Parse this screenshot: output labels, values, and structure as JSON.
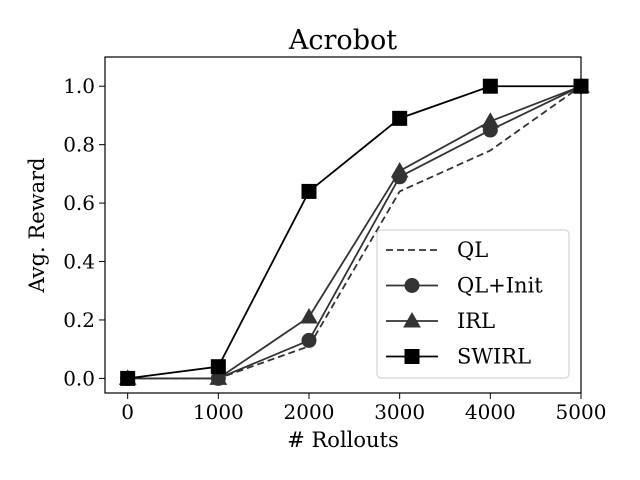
{
  "chart_data": {
    "type": "line",
    "title": "Acrobot",
    "xlabel": "# Rollouts",
    "ylabel": "Avg. Reward",
    "x": [
      0,
      1000,
      2000,
      3000,
      4000,
      5000
    ],
    "xticks": [
      "0",
      "1000",
      "2000",
      "3000",
      "4000",
      "5000"
    ],
    "yticks": [
      "0.0",
      "0.2",
      "0.4",
      "0.6",
      "0.8",
      "1.0"
    ],
    "xlim": [
      -250,
      5000
    ],
    "ylim": [
      -0.05,
      1.1
    ],
    "grid": false,
    "legend_position": "lower-right",
    "series": [
      {
        "name": "QL",
        "values": [
          0.0,
          0.0,
          0.11,
          0.64,
          0.78,
          1.0
        ],
        "marker": "none",
        "dash": "dashed",
        "color": "#333333"
      },
      {
        "name": "QL+Init",
        "values": [
          0.0,
          0.0,
          0.13,
          0.69,
          0.85,
          1.0
        ],
        "marker": "circle",
        "dash": "solid",
        "color": "#333333"
      },
      {
        "name": "IRL",
        "values": [
          0.0,
          0.0,
          0.21,
          0.71,
          0.88,
          1.0
        ],
        "marker": "triangle",
        "dash": "solid",
        "color": "#333333"
      },
      {
        "name": "SWIRL",
        "values": [
          0.0,
          0.04,
          0.64,
          0.89,
          1.0,
          1.0
        ],
        "marker": "square",
        "dash": "solid",
        "color": "#000000"
      }
    ]
  }
}
